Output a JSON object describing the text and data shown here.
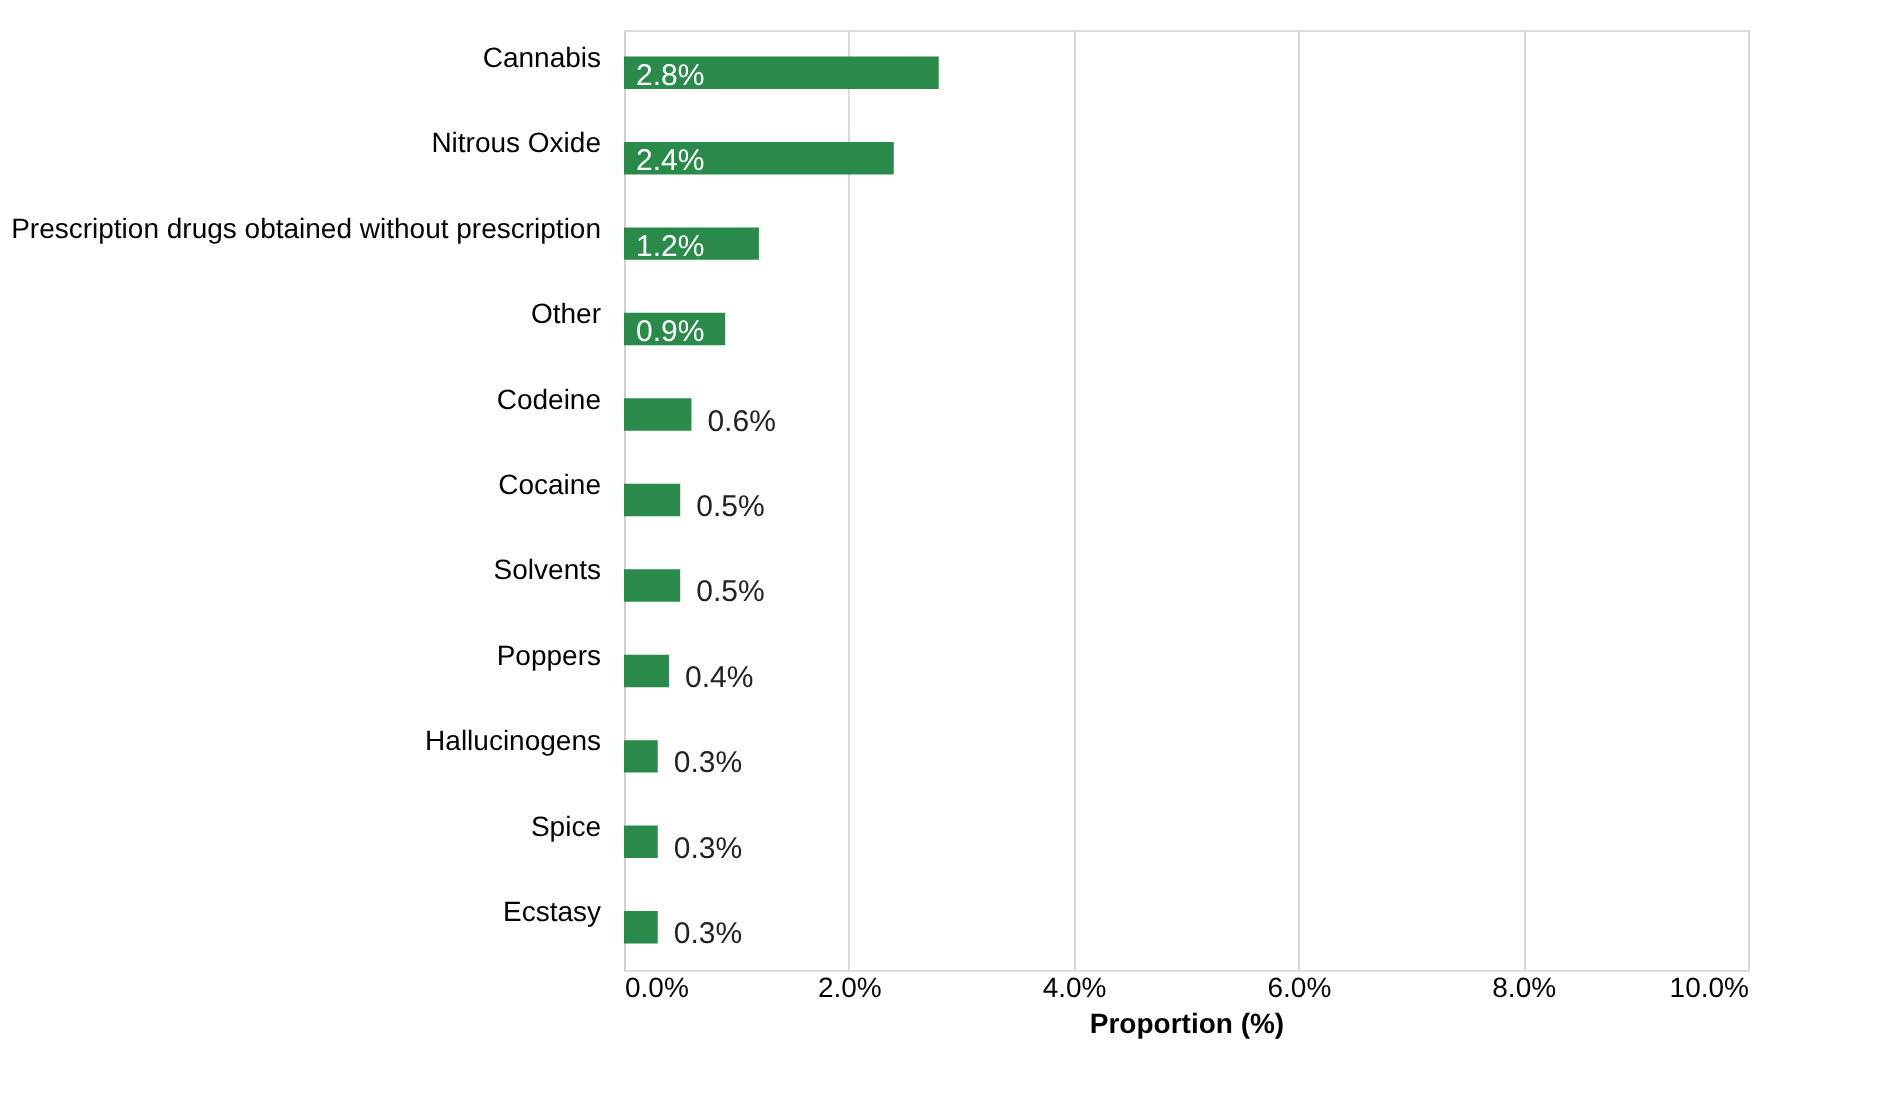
{
  "chart_data": {
    "type": "bar",
    "orientation": "horizontal",
    "categories": [
      "Cannabis",
      "Nitrous Oxide",
      "Prescription drugs obtained without prescription",
      "Other",
      "Codeine",
      "Cocaine",
      "Solvents",
      "Poppers",
      "Hallucinogens",
      "Spice",
      "Ecstasy"
    ],
    "values": [
      2.8,
      2.4,
      1.2,
      0.9,
      0.6,
      0.5,
      0.5,
      0.4,
      0.3,
      0.3,
      0.3
    ],
    "value_labels": [
      "2.8%",
      "2.4%",
      "1.2%",
      "0.9%",
      "0.6%",
      "0.5%",
      "0.5%",
      "0.4%",
      "0.3%",
      "0.3%",
      "0.3%"
    ],
    "color": "#2a8a4a",
    "xlabel": "Proportion (%)",
    "xlim": [
      0,
      10
    ],
    "xticks": [
      {
        "value": 0,
        "label": "0.0%"
      },
      {
        "value": 2,
        "label": "2.0%"
      },
      {
        "value": 4,
        "label": "4.0%"
      },
      {
        "value": 6,
        "label": "6.0%"
      },
      {
        "value": 8,
        "label": "8.0%"
      },
      {
        "value": 10,
        "label": "10.0%"
      }
    ],
    "grid": "x"
  }
}
